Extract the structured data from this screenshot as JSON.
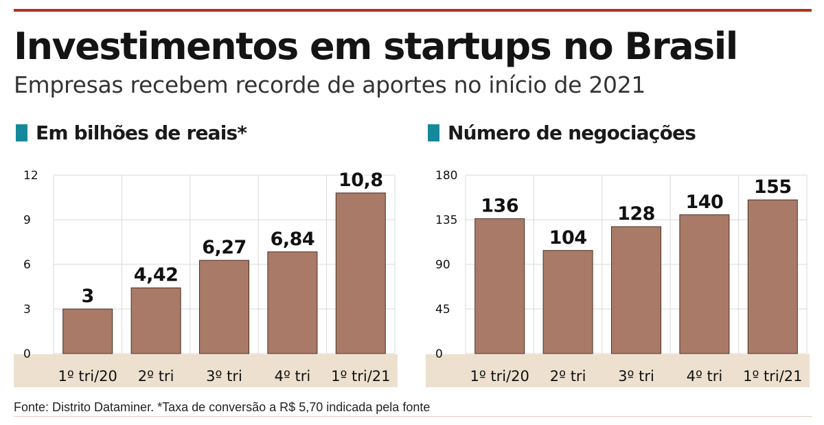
{
  "header": {
    "title": "Investimentos em startups no Brasil",
    "subtitle": "Empresas recebem recorde de aportes no início de 2021"
  },
  "colors": {
    "bar": "#a97a68",
    "bar_stroke": "#4a2e22",
    "category_band": "#ede0cf",
    "section_marker": "#15899b",
    "top_rule": "#b0321d",
    "grid": "#d9d9d9"
  },
  "chart_data": [
    {
      "type": "bar",
      "title": "Em bilhões de reais*",
      "categories": [
        "1º tri/20",
        "2º tri",
        "3º tri",
        "4º tri",
        "1º tri/21"
      ],
      "values": [
        3,
        4.42,
        6.27,
        6.84,
        10.8
      ],
      "value_labels": [
        "3",
        "4,42",
        "6,27",
        "6,84",
        "10,8"
      ],
      "yticks": [
        0,
        3,
        6,
        9,
        12
      ],
      "ytick_labels": [
        "0",
        "3",
        "6",
        "9",
        "12"
      ],
      "ylim": [
        0,
        12
      ],
      "grid": true,
      "xlabel": "",
      "ylabel": ""
    },
    {
      "type": "bar",
      "title": "Número de negociações",
      "categories": [
        "1º tri/20",
        "2º tri",
        "3º tri",
        "4º tri",
        "1º tri/21"
      ],
      "values": [
        136,
        104,
        128,
        140,
        155
      ],
      "value_labels": [
        "136",
        "104",
        "128",
        "140",
        "155"
      ],
      "yticks": [
        0,
        45,
        90,
        135,
        180
      ],
      "ytick_labels": [
        "0",
        "45",
        "90",
        "135",
        "180"
      ],
      "ylim": [
        0,
        180
      ],
      "grid": true,
      "xlabel": "",
      "ylabel": ""
    }
  ],
  "footer": {
    "source": "Fonte: Distrito Dataminer. *Taxa de conversão a R$ 5,70 indicada pela fonte"
  }
}
